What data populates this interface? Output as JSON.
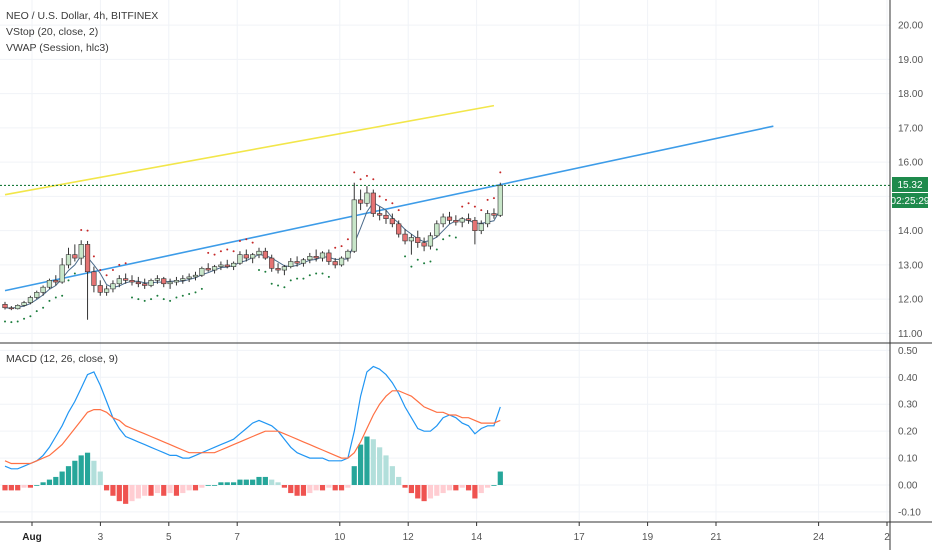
{
  "header": {
    "symbol_line": "NEO / U.S. Dollar, 4h, BITFINEX",
    "indicator_1": "VStop (20, close, 2)",
    "indicator_2": "VWAP (Session, hlc3)"
  },
  "macd_panel": {
    "title": "MACD (12, 26, close, 9)"
  },
  "price_tag": {
    "price": "15.32",
    "countdown": "02:25:29"
  },
  "colors": {
    "bull": "#26a69a",
    "bear": "#ef5350",
    "bull_light": "#b2dfdb",
    "bear_light": "#ffcdd2",
    "macd_line": "#2196f3",
    "signal_line": "#ff7043",
    "trendline_blue": "#3d9ce8",
    "trendline_yellow": "#f2e64a",
    "price_line": "#1b7c3c",
    "tag": "#1e8a4c"
  },
  "chart_data": [
    {
      "type": "candlestick",
      "title": "NEO / U.S. Dollar, 4h, BITFINEX",
      "y_ticks": [
        "20.00",
        "19.00",
        "18.00",
        "17.00",
        "16.00",
        "15.00",
        "14.00",
        "13.00",
        "12.00",
        "11.00"
      ],
      "x_ticks": [
        {
          "label": "Aug",
          "day": 1,
          "bold": true
        },
        {
          "label": "3",
          "day": 3
        },
        {
          "label": "5",
          "day": 5
        },
        {
          "label": "7",
          "day": 7
        },
        {
          "label": "10",
          "day": 10
        },
        {
          "label": "12",
          "day": 12
        },
        {
          "label": "14",
          "day": 14
        },
        {
          "label": "17",
          "day": 17
        },
        {
          "label": "19",
          "day": 19
        },
        {
          "label": "21",
          "day": 21
        },
        {
          "label": "24",
          "day": 24
        },
        {
          "label": "2",
          "day": 26
        }
      ],
      "ylim": [
        10.75,
        20.5
      ],
      "candles": [
        [
          11.85,
          11.92,
          11.7,
          11.75
        ],
        [
          11.75,
          11.8,
          11.68,
          11.72
        ],
        [
          11.72,
          11.85,
          11.7,
          11.82
        ],
        [
          11.82,
          11.95,
          11.78,
          11.9
        ],
        [
          11.9,
          12.1,
          11.85,
          12.05
        ],
        [
          12.05,
          12.25,
          12.0,
          12.2
        ],
        [
          12.2,
          12.4,
          12.1,
          12.35
        ],
        [
          12.35,
          12.6,
          12.3,
          12.55
        ],
        [
          12.55,
          12.7,
          12.4,
          12.5
        ],
        [
          12.5,
          13.2,
          12.45,
          13.0
        ],
        [
          13.0,
          13.5,
          12.9,
          13.3
        ],
        [
          13.3,
          13.6,
          13.1,
          13.2
        ],
        [
          13.2,
          13.72,
          13.0,
          13.6
        ],
        [
          13.6,
          13.7,
          11.4,
          12.8
        ],
        [
          12.8,
          12.95,
          12.2,
          12.4
        ],
        [
          12.4,
          12.55,
          12.1,
          12.2
        ],
        [
          12.2,
          12.4,
          12.1,
          12.3
        ],
        [
          12.3,
          12.55,
          12.2,
          12.45
        ],
        [
          12.45,
          12.7,
          12.35,
          12.6
        ],
        [
          12.6,
          12.75,
          12.45,
          12.55
        ],
        [
          12.55,
          12.7,
          12.4,
          12.5
        ],
        [
          12.5,
          12.65,
          12.35,
          12.45
        ],
        [
          12.45,
          12.6,
          12.3,
          12.4
        ],
        [
          12.4,
          12.6,
          12.35,
          12.55
        ],
        [
          12.55,
          12.7,
          12.45,
          12.6
        ],
        [
          12.6,
          12.65,
          12.35,
          12.45
        ],
        [
          12.45,
          12.6,
          12.3,
          12.5
        ],
        [
          12.5,
          12.65,
          12.4,
          12.55
        ],
        [
          12.55,
          12.7,
          12.45,
          12.6
        ],
        [
          12.6,
          12.75,
          12.5,
          12.65
        ],
        [
          12.65,
          12.8,
          12.55,
          12.7
        ],
        [
          12.7,
          12.95,
          12.65,
          12.9
        ],
        [
          12.9,
          13.05,
          12.8,
          12.85
        ],
        [
          12.85,
          13.0,
          12.75,
          12.95
        ],
        [
          12.95,
          13.1,
          12.85,
          13.0
        ],
        [
          13.0,
          13.15,
          12.9,
          12.95
        ],
        [
          12.95,
          13.1,
          12.85,
          13.05
        ],
        [
          13.05,
          13.4,
          13.0,
          13.3
        ],
        [
          13.3,
          13.45,
          13.1,
          13.2
        ],
        [
          13.2,
          13.35,
          13.05,
          13.3
        ],
        [
          13.3,
          13.5,
          13.2,
          13.4
        ],
        [
          13.4,
          13.5,
          13.15,
          13.2
        ],
        [
          13.2,
          13.3,
          12.8,
          12.9
        ],
        [
          12.9,
          13.05,
          12.75,
          12.85
        ],
        [
          12.85,
          13.0,
          12.7,
          12.95
        ],
        [
          12.95,
          13.2,
          12.9,
          13.1
        ],
        [
          13.1,
          13.25,
          12.95,
          13.05
        ],
        [
          13.05,
          13.2,
          12.95,
          13.15
        ],
        [
          13.15,
          13.35,
          13.05,
          13.25
        ],
        [
          13.25,
          13.45,
          13.1,
          13.2
        ],
        [
          13.2,
          13.4,
          13.1,
          13.35
        ],
        [
          13.35,
          13.45,
          13.0,
          13.1
        ],
        [
          13.1,
          13.2,
          12.9,
          13.0
        ],
        [
          13.0,
          13.25,
          12.95,
          13.2
        ],
        [
          13.2,
          13.45,
          13.1,
          13.4
        ],
        [
          13.4,
          15.4,
          13.35,
          14.9
        ],
        [
          14.9,
          15.2,
          14.6,
          14.8
        ],
        [
          14.8,
          15.3,
          14.7,
          15.1
        ],
        [
          15.1,
          15.2,
          14.4,
          14.5
        ],
        [
          14.5,
          14.7,
          14.3,
          14.45
        ],
        [
          14.45,
          14.6,
          14.2,
          14.35
        ],
        [
          14.35,
          14.5,
          14.1,
          14.2
        ],
        [
          14.2,
          14.3,
          13.8,
          13.9
        ],
        [
          13.9,
          14.05,
          13.6,
          13.7
        ],
        [
          13.7,
          13.9,
          13.3,
          13.8
        ],
        [
          13.8,
          14.0,
          13.5,
          13.65
        ],
        [
          13.65,
          13.8,
          13.4,
          13.55
        ],
        [
          13.55,
          13.95,
          13.45,
          13.85
        ],
        [
          13.85,
          14.3,
          13.8,
          14.2
        ],
        [
          14.2,
          14.5,
          14.1,
          14.4
        ],
        [
          14.4,
          14.55,
          14.2,
          14.3
        ],
        [
          14.3,
          14.45,
          14.15,
          14.25
        ],
        [
          14.25,
          14.4,
          14.1,
          14.35
        ],
        [
          14.35,
          14.5,
          14.2,
          14.3
        ],
        [
          14.3,
          14.4,
          13.6,
          14.0
        ],
        [
          14.0,
          14.3,
          13.9,
          14.2
        ],
        [
          14.2,
          14.6,
          14.1,
          14.5
        ],
        [
          14.5,
          14.65,
          14.35,
          14.45
        ],
        [
          14.45,
          15.4,
          14.4,
          15.32
        ]
      ],
      "trendlines": [
        {
          "from": [
            0,
            12.25
          ],
          "to": [
            121,
            17.05
          ],
          "color": "trendline_blue"
        },
        {
          "from": [
            0,
            15.05
          ],
          "to": [
            77,
            17.65
          ],
          "color": "trendline_yellow"
        }
      ],
      "price_line": 15.32
    },
    {
      "type": "macd",
      "title": "MACD (12, 26, close, 9)",
      "y_ticks": [
        "0.50",
        "0.40",
        "0.30",
        "0.20",
        "0.10",
        "0.00",
        "-0.10"
      ],
      "ylim": [
        -0.13,
        0.52
      ],
      "histogram": [
        -0.02,
        -0.02,
        -0.02,
        -0.01,
        -0.01,
        0.0,
        0.01,
        0.02,
        0.03,
        0.05,
        0.07,
        0.09,
        0.11,
        0.12,
        0.09,
        0.05,
        -0.02,
        -0.04,
        -0.06,
        -0.07,
        -0.06,
        -0.05,
        -0.04,
        -0.04,
        -0.03,
        -0.04,
        -0.03,
        -0.04,
        -0.03,
        -0.02,
        -0.02,
        -0.01,
        0.0,
        0.0,
        0.01,
        0.01,
        0.01,
        0.02,
        0.02,
        0.02,
        0.03,
        0.03,
        0.02,
        0.01,
        -0.01,
        -0.03,
        -0.04,
        -0.04,
        -0.03,
        -0.02,
        -0.02,
        -0.01,
        -0.02,
        -0.02,
        -0.01,
        0.07,
        0.15,
        0.18,
        0.17,
        0.14,
        0.11,
        0.07,
        0.03,
        -0.01,
        -0.03,
        -0.05,
        -0.06,
        -0.05,
        -0.04,
        -0.03,
        -0.02,
        -0.02,
        -0.01,
        -0.02,
        -0.05,
        -0.03,
        -0.01,
        0.0,
        0.05
      ],
      "macd": [
        0.07,
        0.06,
        0.06,
        0.07,
        0.08,
        0.09,
        0.11,
        0.14,
        0.18,
        0.22,
        0.27,
        0.31,
        0.36,
        0.41,
        0.42,
        0.37,
        0.31,
        0.25,
        0.21,
        0.18,
        0.17,
        0.16,
        0.15,
        0.14,
        0.13,
        0.12,
        0.11,
        0.11,
        0.1,
        0.1,
        0.11,
        0.12,
        0.13,
        0.14,
        0.15,
        0.16,
        0.17,
        0.19,
        0.21,
        0.23,
        0.24,
        0.23,
        0.22,
        0.2,
        0.17,
        0.14,
        0.12,
        0.11,
        0.1,
        0.1,
        0.1,
        0.09,
        0.09,
        0.09,
        0.1,
        0.2,
        0.33,
        0.42,
        0.44,
        0.43,
        0.41,
        0.38,
        0.34,
        0.29,
        0.25,
        0.21,
        0.2,
        0.2,
        0.22,
        0.25,
        0.26,
        0.25,
        0.23,
        0.22,
        0.19,
        0.21,
        0.22,
        0.22,
        0.29
      ],
      "signal": [
        0.09,
        0.08,
        0.08,
        0.08,
        0.08,
        0.09,
        0.1,
        0.11,
        0.13,
        0.15,
        0.18,
        0.21,
        0.24,
        0.27,
        0.28,
        0.28,
        0.27,
        0.25,
        0.24,
        0.22,
        0.21,
        0.2,
        0.19,
        0.18,
        0.17,
        0.16,
        0.15,
        0.14,
        0.13,
        0.12,
        0.12,
        0.12,
        0.12,
        0.12,
        0.13,
        0.14,
        0.15,
        0.16,
        0.17,
        0.18,
        0.19,
        0.2,
        0.2,
        0.2,
        0.19,
        0.18,
        0.17,
        0.16,
        0.15,
        0.14,
        0.13,
        0.12,
        0.11,
        0.1,
        0.1,
        0.12,
        0.16,
        0.21,
        0.26,
        0.3,
        0.33,
        0.35,
        0.35,
        0.34,
        0.33,
        0.31,
        0.29,
        0.28,
        0.27,
        0.27,
        0.26,
        0.26,
        0.25,
        0.25,
        0.24,
        0.23,
        0.23,
        0.23,
        0.24
      ]
    }
  ]
}
